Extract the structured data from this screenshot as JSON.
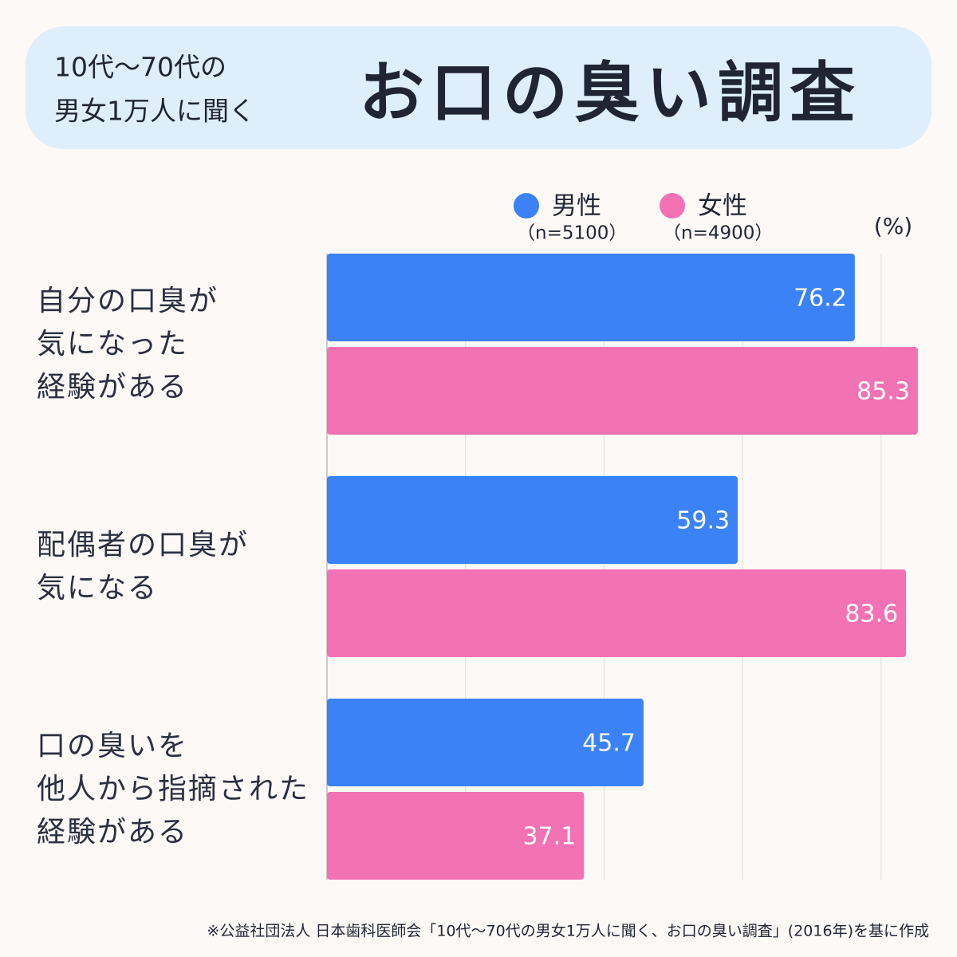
{
  "chart_data": {
    "type": "hbar",
    "subtitle_lines": [
      "10代〜70代の",
      "男女1万人に聞く"
    ],
    "title": "お口の臭い調査",
    "unit": "(%)",
    "categories": [
      "自分の口臭が\n気になった\n経験がある",
      "配偶者の口臭が\n気になる",
      "口の臭いを\n他人から指摘された\n経験がある"
    ],
    "series": [
      {
        "name": "男性",
        "sample": "（n=5100）",
        "color": "#3b82f6",
        "values": [
          76.2,
          59.3,
          45.7
        ]
      },
      {
        "name": "女性",
        "sample": "（n=4900）",
        "color": "#f272b4",
        "values": [
          85.3,
          83.6,
          37.1
        ]
      }
    ],
    "xlim": [
      0,
      86
    ],
    "xticks": [
      0,
      20,
      40,
      60,
      80
    ],
    "grid": true,
    "source": "※公益社団法人 日本歯科医師会「10代〜70代の男女1万人に聞く、お口の臭い調査」(2016年)を基に作成"
  }
}
